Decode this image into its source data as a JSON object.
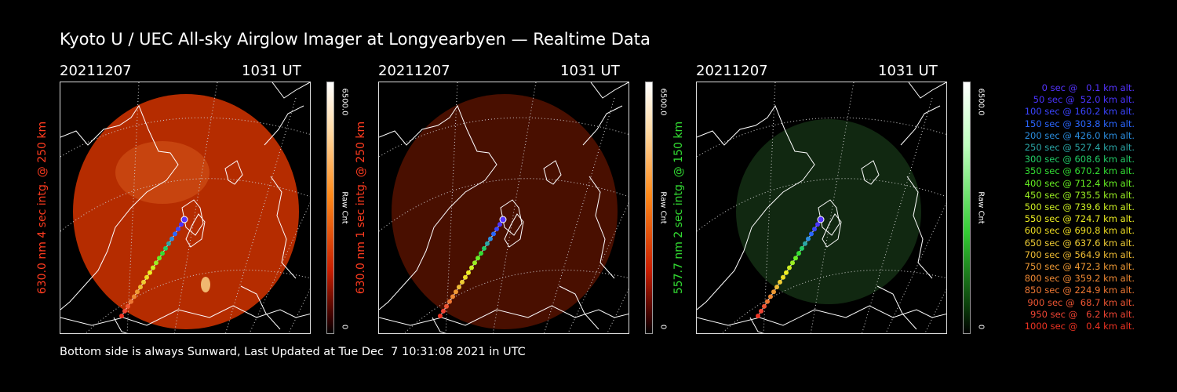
{
  "title": "Kyoto U / UEC All-sky Airglow Imager at Longyearbyen — Realtime Data",
  "panels": [
    {
      "date": "20211207",
      "time": "1031 UT",
      "side_label": "630.0 nm 4 sec intg. @ 250 km",
      "side_color": "#ff3b1f",
      "scale_max": "6500.0",
      "scale_min": "0",
      "unit": "Raw Cnt",
      "tint": "red",
      "brightness": 0.85
    },
    {
      "date": "20211207",
      "time": "1031 UT",
      "side_label": "630.0 nm 1 sec intg. @ 250 km",
      "side_color": "#ff3b1f",
      "scale_max": "6500.0",
      "scale_min": "0",
      "unit": "Raw Cnt",
      "tint": "red",
      "brightness": 0.25
    },
    {
      "date": "20211207",
      "time": "1031 UT",
      "side_label": "557.7 nm 2 sec intg. @ 150 km",
      "side_color": "#33dd33",
      "scale_max": "6500.0",
      "scale_min": "0",
      "unit": "Raw Cnt",
      "tint": "green",
      "brightness": 0.25
    }
  ],
  "legend": [
    {
      "text": "0 sec @   0.1 km alt.",
      "color": "#5533ff"
    },
    {
      "text": "50 sec @  52.0 km alt.",
      "color": "#4a33ff"
    },
    {
      "text": "100 sec @ 160.2 km alt.",
      "color": "#3a44ff"
    },
    {
      "text": "150 sec @ 303.8 km alt.",
      "color": "#2a66ff"
    },
    {
      "text": "200 sec @ 426.0 km alt.",
      "color": "#2a8cdd"
    },
    {
      "text": "250 sec @ 527.4 km alt.",
      "color": "#2aa6a6"
    },
    {
      "text": "300 sec @ 608.6 km alt.",
      "color": "#22cc66"
    },
    {
      "text": "350 sec @ 670.2 km alt.",
      "color": "#33dd33"
    },
    {
      "text": "400 sec @ 712.4 km alt.",
      "color": "#66ee22"
    },
    {
      "text": "450 sec @ 735.5 km alt.",
      "color": "#99ee22"
    },
    {
      "text": "500 sec @ 739.6 km alt.",
      "color": "#ccee22"
    },
    {
      "text": "550 sec @ 724.7 km alt.",
      "color": "#eeee22"
    },
    {
      "text": "600 sec @ 690.8 km alt.",
      "color": "#eedd22"
    },
    {
      "text": "650 sec @ 637.6 km alt.",
      "color": "#eecc33"
    },
    {
      "text": "700 sec @ 564.9 km alt.",
      "color": "#eebb33"
    },
    {
      "text": "750 sec @ 472.3 km alt.",
      "color": "#ee9933"
    },
    {
      "text": "800 sec @ 359.2 km alt.",
      "color": "#ee8833"
    },
    {
      "text": "850 sec @ 224.9 km alt.",
      "color": "#ee7733"
    },
    {
      "text": "900 sec @  68.7 km alt.",
      "color": "#ee5533"
    },
    {
      "text": "950 sec @   6.2 km alt.",
      "color": "#ee4433"
    },
    {
      "text": "1000 sec @   0.4 km alt.",
      "color": "#ee3322"
    }
  ],
  "footer": "Bottom side is always Sunward, Last Updated at Tue Dec  7 10:31:08 2021 in UTC"
}
